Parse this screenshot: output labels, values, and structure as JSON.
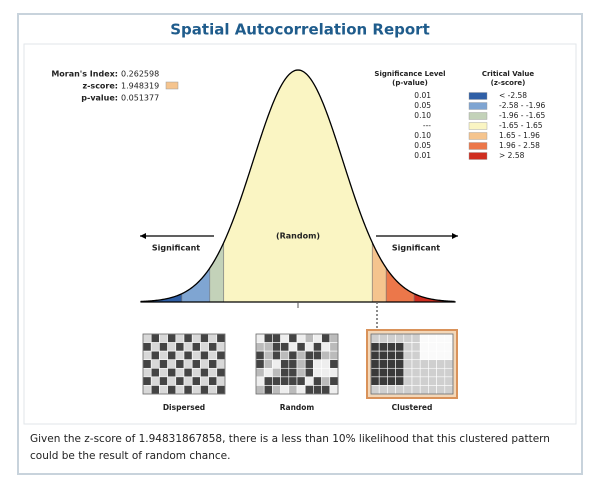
{
  "title": "Spatial Autocorrelation Report",
  "stats": [
    {
      "label": "Moran's Index:",
      "value": "0.262598"
    },
    {
      "label": "z-score:",
      "value": "1.948319"
    },
    {
      "label": "p-value:",
      "value": "0.051377"
    }
  ],
  "legend": {
    "level_header": [
      "Significance Level",
      "(p-value)"
    ],
    "value_header": [
      "Critical Value",
      "(z-score)"
    ],
    "rows": [
      {
        "level": "0.01",
        "range": "< -2.58",
        "color": "#2f5fa6"
      },
      {
        "level": "0.05",
        "range": "-2.58 - -1.96",
        "color": "#7fa5d2"
      },
      {
        "level": "0.10",
        "range": "-1.96 - -1.65",
        "color": "#c3d2b9"
      },
      {
        "level": "---",
        "range": "-1.65 - 1.65",
        "color": "#faf5c3"
      },
      {
        "level": "0.10",
        "range": "1.65 - 1.96",
        "color": "#f5c48e"
      },
      {
        "level": "0.05",
        "range": "1.96 - 2.58",
        "color": "#ec774a"
      },
      {
        "level": "0.01",
        "range": "> 2.58",
        "color": "#cf2e20"
      }
    ]
  },
  "curve_labels": {
    "left": "Significant",
    "center": "(Random)",
    "right": "Significant"
  },
  "maps": [
    "Dispersed",
    "Random",
    "Clustered"
  ],
  "footer": "Given the z-score of 1.94831867858, there is a less than 10% likelihood that this clustered pattern could be the result of random chance."
}
